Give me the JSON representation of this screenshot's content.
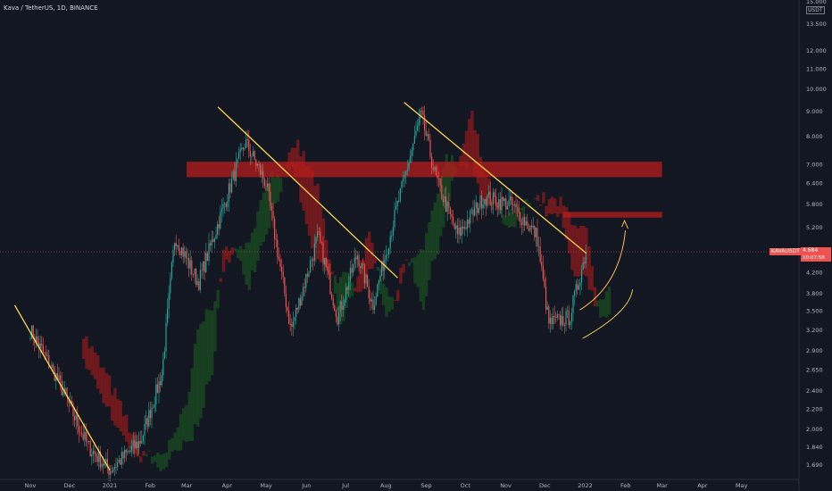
{
  "header": {
    "title": "Kava / TetherUS, 1D, BINANCE"
  },
  "price_axis": {
    "currency": "USDT",
    "ticks": [
      "15.000",
      "13.500",
      "12.000",
      "11.000",
      "10.000",
      "9.000",
      "8.000",
      "7.000",
      "6.400",
      "5.800",
      "5.200",
      "4.600",
      "4.200",
      "3.800",
      "3.500",
      "3.200",
      "2.900",
      "2.650",
      "2.400",
      "2.200",
      "2.000",
      "1.840",
      "1.690"
    ]
  },
  "time_axis": {
    "ticks": [
      "Nov",
      "Dec",
      "2021",
      "Feb",
      "Mar",
      "Apr",
      "May",
      "Jun",
      "Jul",
      "Aug",
      "Sep",
      "Oct",
      "Nov",
      "Dec",
      "2022",
      "Feb",
      "Mar",
      "Apr",
      "May"
    ]
  },
  "last_price": {
    "symbol": "KAVAUSDT",
    "price": "4.684",
    "countdown": "10:07:58"
  },
  "colors": {
    "background": "#131722",
    "up": "#26a69a",
    "down": "#ef5350",
    "trendline": "#ffd54f",
    "resistance_zone": "#b71c1c",
    "cloud_bull": "#1b5e20",
    "cloud_bear": "#b71c1c",
    "projection": "#ffb74d"
  },
  "chart_data": {
    "type": "candlestick",
    "symbol": "KAVAUSDT",
    "exchange": "BINANCE",
    "interval": "1D",
    "scale": "log",
    "grid": false,
    "approx_close_path": [
      {
        "date": "2020-11-01",
        "price": 3.2
      },
      {
        "date": "2020-11-20",
        "price": 2.6
      },
      {
        "date": "2020-12-15",
        "price": 1.85
      },
      {
        "date": "2021-01-01",
        "price": 1.65
      },
      {
        "date": "2021-01-25",
        "price": 1.9
      },
      {
        "date": "2021-02-10",
        "price": 2.6
      },
      {
        "date": "2021-02-20",
        "price": 5.0
      },
      {
        "date": "2021-03-10",
        "price": 4.0
      },
      {
        "date": "2021-04-05",
        "price": 6.5
      },
      {
        "date": "2021-04-15",
        "price": 7.8
      },
      {
        "date": "2021-05-01",
        "price": 6.4
      },
      {
        "date": "2021-05-20",
        "price": 3.2
      },
      {
        "date": "2021-06-10",
        "price": 5.0
      },
      {
        "date": "2021-06-25",
        "price": 3.4
      },
      {
        "date": "2021-07-10",
        "price": 4.6
      },
      {
        "date": "2021-07-22",
        "price": 3.6
      },
      {
        "date": "2021-08-10",
        "price": 5.8
      },
      {
        "date": "2021-08-28",
        "price": 8.9
      },
      {
        "date": "2021-09-08",
        "price": 6.6
      },
      {
        "date": "2021-09-25",
        "price": 5.0
      },
      {
        "date": "2021-10-15",
        "price": 6.0
      },
      {
        "date": "2021-11-05",
        "price": 5.8
      },
      {
        "date": "2021-11-25",
        "price": 5.0
      },
      {
        "date": "2021-12-04",
        "price": 3.3
      },
      {
        "date": "2021-12-20",
        "price": 3.4
      },
      {
        "date": "2022-01-02",
        "price": 4.684
      }
    ],
    "annotations": {
      "resistance_zones": [
        {
          "from": "2021-03-01",
          "to": "2022-03-01",
          "low": 6.6,
          "high": 7.1
        },
        {
          "from": "2021-12-15",
          "to": "2022-03-01",
          "low": 5.45,
          "high": 5.6
        }
      ],
      "trendlines": [
        {
          "from": {
            "date": "2020-10-20",
            "price": 3.6
          },
          "to": {
            "date": "2021-01-01",
            "price": 1.65
          }
        },
        {
          "from": {
            "date": "2021-03-25",
            "price": 9.2
          },
          "to": {
            "date": "2021-08-10",
            "price": 4.1
          }
        },
        {
          "from": {
            "date": "2021-08-15",
            "price": 9.4
          },
          "to": {
            "date": "2022-01-02",
            "price": 4.6
          }
        }
      ],
      "projection": {
        "from": {
          "date": "2022-01-01",
          "price": 3.8
        },
        "to": {
          "date": "2022-01-25",
          "price": 5.0
        }
      }
    }
  }
}
